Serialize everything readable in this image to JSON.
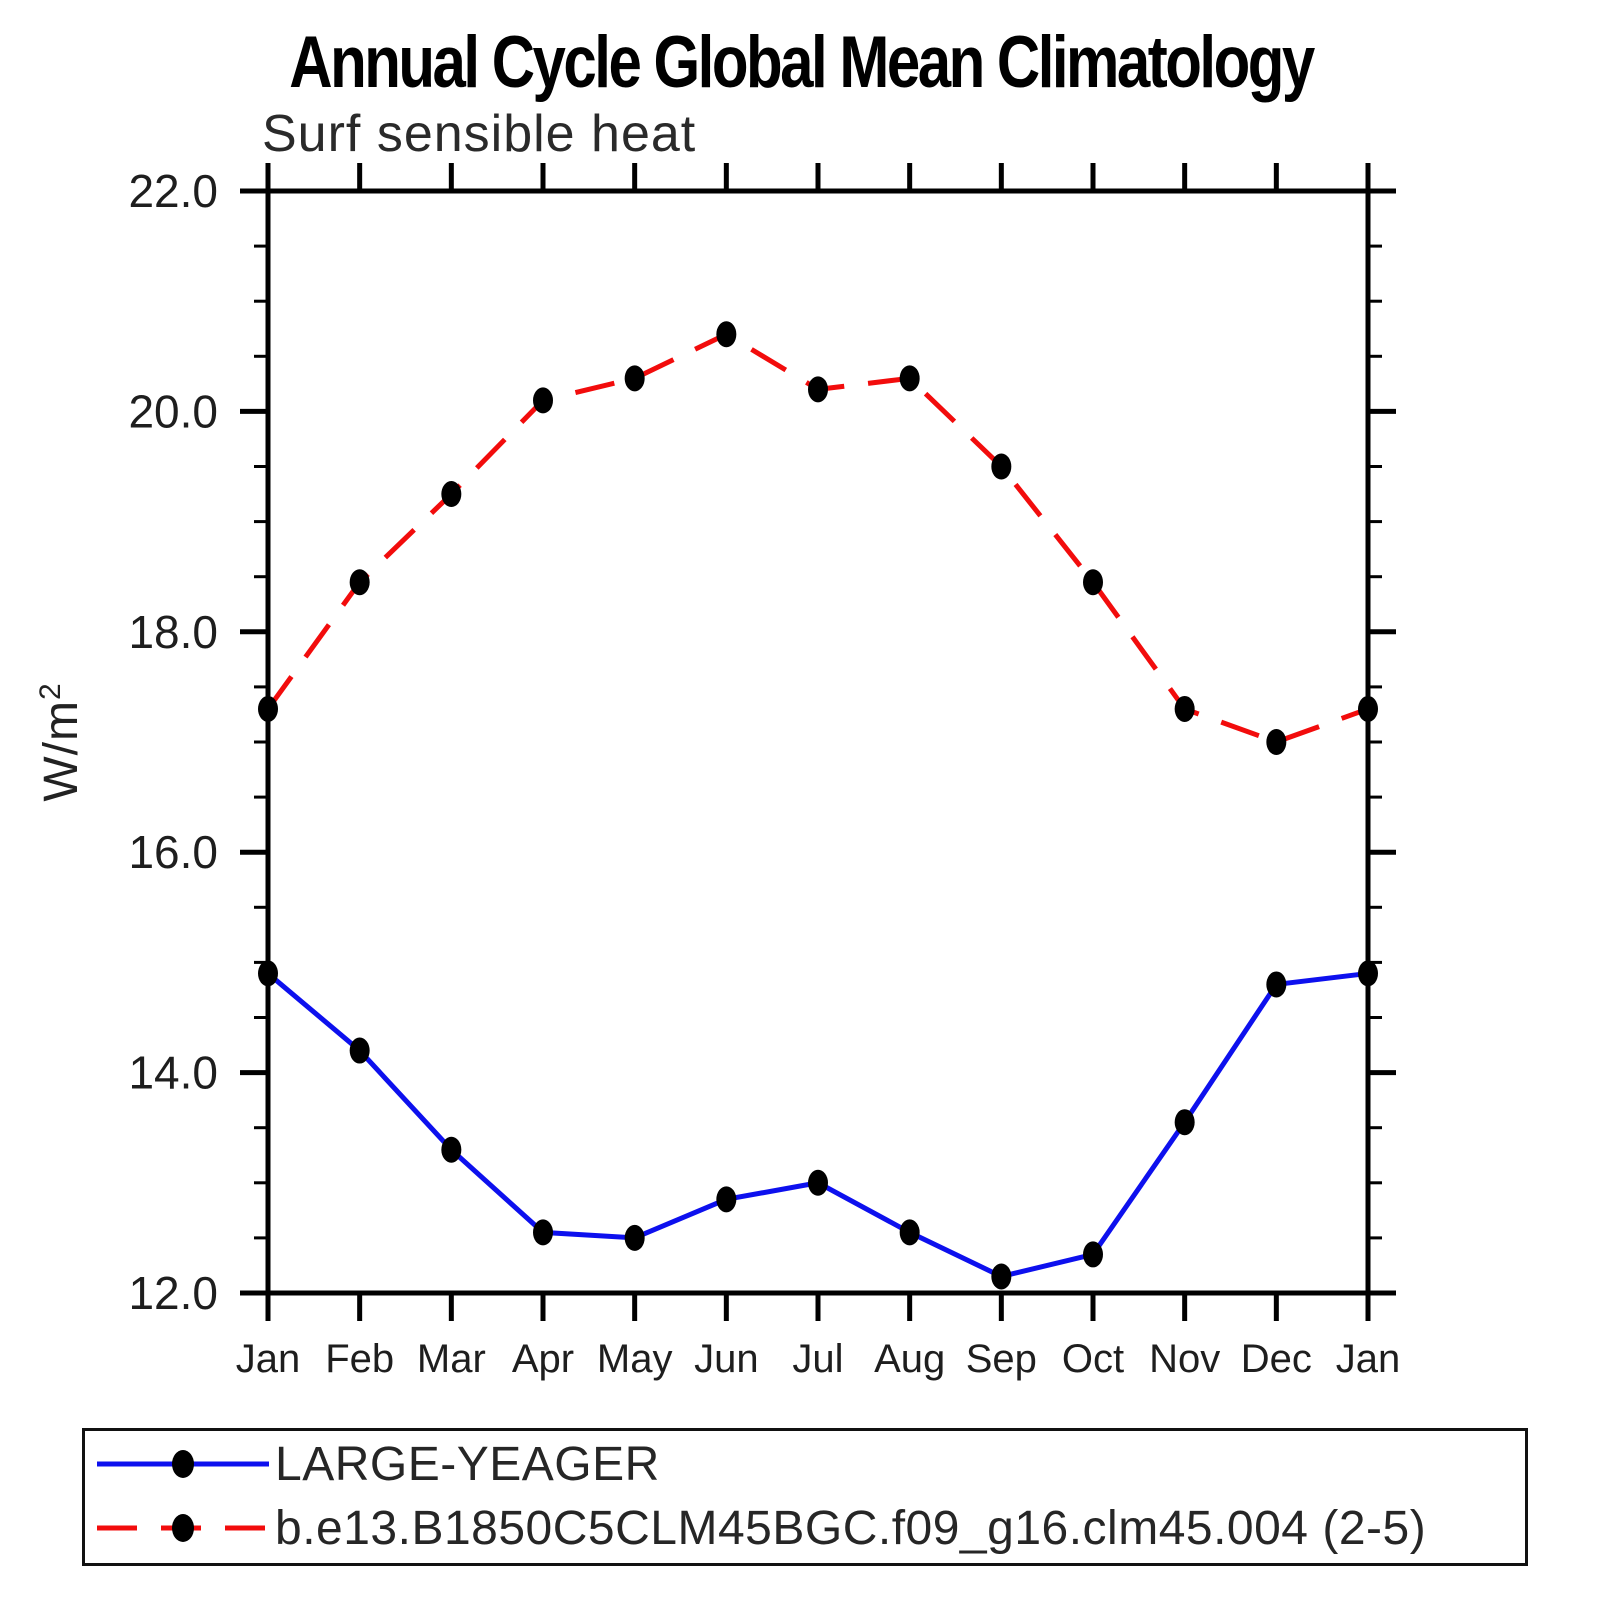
{
  "chart_data": {
    "type": "line",
    "title": "Annual Cycle Global Mean Climatology",
    "subtitle": "Surf sensible heat",
    "ylabel_base": "W/m",
    "ylabel_exp": "2",
    "x_categories": [
      "Jan",
      "Feb",
      "Mar",
      "Apr",
      "May",
      "Jun",
      "Jul",
      "Aug",
      "Sep",
      "Oct",
      "Nov",
      "Dec",
      "Jan"
    ],
    "ylim": [
      12.0,
      22.0
    ],
    "ytick_major_step": 2.0,
    "ytick_minor_step": 0.5,
    "ytick_labels": [
      "12.0",
      "14.0",
      "16.0",
      "18.0",
      "20.0",
      "22.0"
    ],
    "grid": "off",
    "legend_position": "bottom-left-box",
    "marker": "filled-circle",
    "marker_color": "#000000",
    "frame_color": "#000000",
    "series": [
      {
        "name": "LARGE-YEAGER",
        "color": "#0d10ee",
        "line_style": "solid",
        "values": [
          14.9,
          14.2,
          13.3,
          12.55,
          12.5,
          12.85,
          13.0,
          12.55,
          12.15,
          12.35,
          13.55,
          14.8,
          14.9
        ]
      },
      {
        "name": "b.e13.B1850C5CLM45BGC.f09_g16.clm45.004 (2-5)",
        "color": "#f20c0c",
        "line_style": "dashed",
        "values": [
          17.3,
          18.45,
          19.25,
          20.1,
          20.3,
          20.7,
          20.2,
          20.3,
          19.5,
          18.45,
          17.3,
          17.0,
          17.3
        ]
      }
    ]
  }
}
